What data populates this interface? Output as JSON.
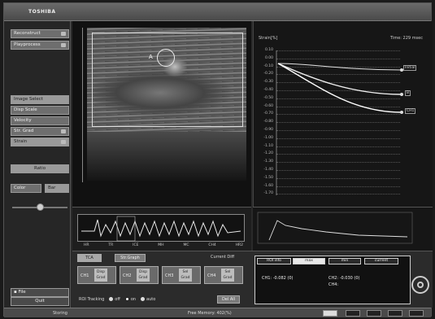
{
  "app": {
    "brand": "TOSHIBA"
  },
  "sidebar": {
    "buttons": [
      {
        "label": "Reconstruct",
        "toggle": true
      },
      {
        "label": "Playprocess",
        "toggle": true
      },
      {
        "label": "Image Select",
        "active": true
      },
      {
        "label": "Disp Scale"
      },
      {
        "label": "Velocity"
      },
      {
        "label": "Str. Grad",
        "toggle": true
      },
      {
        "label": "Strain",
        "toggle": true,
        "selected": true
      },
      {
        "label": "Ratio",
        "dark": true
      },
      {
        "label": "Color"
      },
      {
        "label": "Bar"
      }
    ],
    "file_btn": "File",
    "quit_btn": "Quit"
  },
  "image": {
    "roi_label": "A"
  },
  "graph": {
    "title": "Strain[%]",
    "time": "Time: 229 msec",
    "yticks": [
      "0.10",
      "0.00",
      "-0.10",
      "-0.20",
      "-0.30",
      "-0.40",
      "-0.50",
      "-0.60",
      "-0.70",
      "-0.80",
      "-0.90",
      "-1.00",
      "-1.10",
      "-1.20",
      "-1.30",
      "-1.40",
      "-1.50",
      "-1.60",
      "-1.70"
    ],
    "legend": [
      "Initial",
      "B",
      "CH1"
    ]
  },
  "wave": {
    "labels": [
      "HR",
      "TR",
      "ICE",
      "MH",
      "MC",
      "CH4",
      "HR2"
    ]
  },
  "bottom": {
    "tabs": [
      "TCA",
      "Str.Graph"
    ],
    "current_label": "Current Diff",
    "ctrl": [
      {
        "ch": "CH1",
        "a": "Disp",
        "b": "Grad"
      },
      {
        "ch": "CH2",
        "a": "Disp",
        "b": "Grad"
      },
      {
        "ch": "CH3",
        "a": "Sel",
        "b": "Grad"
      },
      {
        "ch": "CH4",
        "a": "Sel",
        "b": "Grad"
      }
    ],
    "roi_tracking": "ROI Tracking",
    "radio": [
      "off",
      "on",
      "auto"
    ],
    "del_all": "Del All",
    "rtabs": [
      "ROI info",
      "max",
      "min",
      "current"
    ],
    "values": {
      "ch1": "CH1: -0.082 (0)",
      "ch2": "CH2: -0.030 (0)",
      "ch4": "CH4:"
    }
  },
  "status": {
    "left": "Storing",
    "middle": "Free Memory: 402(%)"
  }
}
